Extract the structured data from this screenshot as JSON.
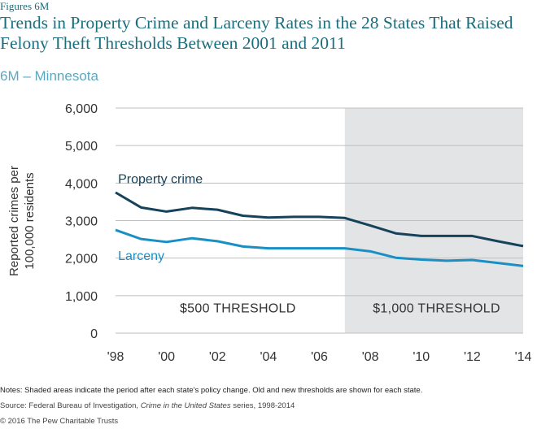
{
  "figure_label": "Figures 6M",
  "title": "Trends in Property Crime and Larceny Rates in the 28 States That Raised Felony Theft Thresholds Between 2001 and 2011",
  "subtitle": "6M – Minnesota",
  "notes": "Notes: Shaded areas indicate the period after each state's policy change. Old and new thresholds are shown for each state.",
  "source_prefix": "Source: Federal Bureau of Investigation, ",
  "source_title": "Crime in the United States",
  "source_suffix": " series, 1998-2014",
  "copyright": "© 2016 The Pew Charitable Trusts",
  "colors": {
    "title": "#1a6e7e",
    "subtitle": "#5ba8bd",
    "property_crime": "#16425b",
    "larceny": "#1a8fc4",
    "shade": "#e3e4e6",
    "grid": "#bfbfbf"
  },
  "chart_data": {
    "type": "line",
    "x": [
      1998,
      1999,
      2000,
      2001,
      2002,
      2003,
      2004,
      2005,
      2006,
      2007,
      2008,
      2009,
      2010,
      2011,
      2012,
      2013,
      2014
    ],
    "x_tick_values": [
      1998,
      2000,
      2002,
      2004,
      2006,
      2008,
      2010,
      2012,
      2014
    ],
    "x_tick_labels": [
      "'98",
      "'00",
      "'02",
      "'04",
      "'06",
      "'08",
      "'10",
      "'12",
      "'14"
    ],
    "ylabel": "Reported crimes per 100,000 residents",
    "ylim": [
      0,
      6000
    ],
    "y_ticks": [
      0,
      1000,
      2000,
      3000,
      4000,
      5000,
      6000
    ],
    "y_tick_labels": [
      "0",
      "1,000",
      "2,000",
      "3,000",
      "4,000",
      "5,000",
      "6,000"
    ],
    "grid": true,
    "series": [
      {
        "name": "Property crime",
        "values": [
          3750,
          3350,
          3240,
          3340,
          3290,
          3130,
          3080,
          3100,
          3100,
          3070,
          2870,
          2660,
          2590,
          2590,
          2590,
          2450,
          2320
        ]
      },
      {
        "name": "Larceny",
        "values": [
          2750,
          2510,
          2430,
          2530,
          2450,
          2310,
          2260,
          2260,
          2260,
          2260,
          2180,
          2010,
          1960,
          1930,
          1950,
          1870,
          1790
        ]
      }
    ],
    "shaded_region": {
      "start": 2007,
      "end": 2014
    },
    "annotations": [
      {
        "label": "$500 THRESHOLD",
        "x": 2002.8,
        "y": 550
      },
      {
        "label": "$1,000 THRESHOLD",
        "x": 2010.6,
        "y": 550
      }
    ]
  }
}
